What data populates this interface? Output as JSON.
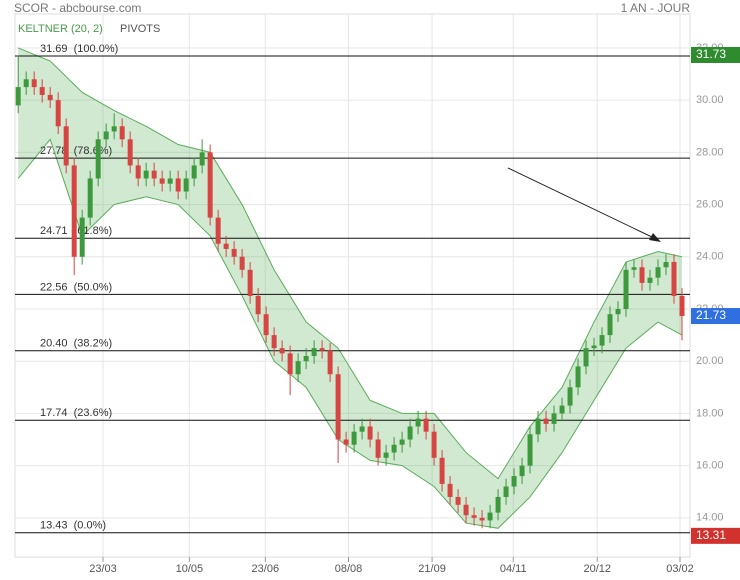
{
  "chart_data": {
    "type": "candlestick",
    "title": "SCOR - abcbourse.com",
    "period": "1 AN - JOUR",
    "legend": [
      "KELTNER (20, 2)",
      "PIVOTS"
    ],
    "ylim": [
      12.5,
      33.3
    ],
    "yticks": [
      {
        "value": 14,
        "label": "14.00"
      },
      {
        "value": 16,
        "label": "16.00"
      },
      {
        "value": 18,
        "label": "18.00"
      },
      {
        "value": 20,
        "label": "20.00"
      },
      {
        "value": 22,
        "label": "22.00"
      },
      {
        "value": 24,
        "label": "24.00"
      },
      {
        "value": 26,
        "label": "26.00"
      },
      {
        "value": 28,
        "label": "28.00"
      },
      {
        "value": 30,
        "label": "30.00"
      },
      {
        "value": 32,
        "label": "32.00"
      }
    ],
    "xlim": [
      -0.4,
      84
    ],
    "xticks": [
      {
        "value": 10.6,
        "label": "23/03"
      },
      {
        "value": 21.4,
        "label": "10/05"
      },
      {
        "value": 30.9,
        "label": "23/06"
      },
      {
        "value": 41.3,
        "label": "08/08"
      },
      {
        "value": 51.75,
        "label": "21/09"
      },
      {
        "value": 61.9,
        "label": "04/11"
      },
      {
        "value": 72.4,
        "label": "20/12"
      },
      {
        "value": 82.75,
        "label": "03/02"
      }
    ],
    "grid": true,
    "up_color": "#3c9a3c",
    "down_color": "#d64541",
    "open": [
      29.8,
      30.5,
      30.8,
      30.5,
      30.2,
      30.0,
      29.0,
      27.5,
      24.0,
      25.5,
      27.0,
      28.5,
      28.8,
      29.0,
      28.5,
      27.5,
      27.0,
      27.3,
      27.0,
      26.8,
      27.0,
      26.5,
      27.0,
      27.5,
      28.0,
      25.5,
      24.5,
      24.3,
      24.0,
      23.5,
      22.5,
      21.8,
      21.0,
      20.5,
      20.3,
      19.5,
      20.0,
      20.2,
      20.5,
      20.4,
      19.5,
      17.0,
      16.8,
      17.3,
      17.5,
      17.0,
      16.3,
      16.5,
      16.8,
      17.0,
      17.5,
      17.8,
      17.3,
      16.3,
      15.3,
      14.8,
      14.5,
      14.1,
      14.0,
      13.9,
      14.2,
      14.8,
      15.2,
      15.6,
      16.0,
      17.2,
      17.8,
      17.6,
      18.0,
      18.3,
      19.0,
      19.8,
      20.5,
      20.6,
      21.0,
      21.8,
      22.0,
      23.5,
      23.6,
      23.0,
      23.2,
      23.6,
      23.8,
      22.5
    ],
    "high": [
      31.7,
      31.1,
      31.1,
      30.8,
      30.5,
      30.3,
      29.3,
      27.8,
      25.8,
      27.3,
      28.8,
      29.1,
      29.5,
      29.3,
      28.8,
      27.8,
      27.6,
      27.6,
      27.3,
      27.3,
      27.3,
      27.3,
      27.8,
      28.5,
      28.3,
      25.8,
      24.8,
      24.6,
      24.3,
      23.8,
      22.8,
      22.1,
      21.3,
      20.8,
      20.6,
      20.3,
      20.5,
      20.8,
      20.8,
      20.7,
      19.8,
      17.3,
      17.6,
      17.8,
      17.8,
      17.3,
      16.8,
      17.1,
      17.3,
      17.8,
      18.1,
      18.1,
      17.6,
      16.6,
      15.6,
      15.1,
      14.8,
      14.4,
      14.3,
      14.5,
      15.1,
      15.5,
      15.9,
      16.3,
      17.5,
      18.1,
      18.1,
      18.3,
      18.6,
      19.3,
      20.1,
      20.8,
      20.9,
      21.3,
      22.1,
      22.3,
      23.8,
      23.9,
      23.9,
      23.5,
      23.9,
      24.1,
      24.1,
      22.8
    ],
    "low": [
      29.5,
      30.2,
      30.2,
      29.9,
      29.7,
      28.7,
      27.2,
      23.3,
      23.7,
      25.2,
      26.7,
      28.2,
      28.5,
      28.2,
      27.2,
      26.7,
      26.7,
      26.7,
      26.5,
      26.5,
      26.2,
      26.2,
      26.7,
      27.2,
      25.2,
      24.2,
      24.0,
      23.7,
      23.2,
      22.2,
      21.5,
      20.7,
      20.2,
      20.0,
      18.7,
      19.2,
      19.7,
      19.9,
      20.1,
      19.2,
      16.1,
      16.5,
      16.5,
      17.0,
      16.7,
      16.0,
      16.0,
      16.2,
      16.5,
      16.7,
      17.2,
      17.0,
      16.0,
      15.0,
      14.5,
      14.2,
      13.8,
      13.7,
      13.6,
      13.6,
      13.9,
      14.5,
      14.9,
      15.3,
      15.7,
      16.9,
      17.3,
      17.3,
      17.7,
      18.0,
      18.7,
      19.5,
      20.2,
      20.3,
      20.7,
      21.5,
      21.7,
      23.2,
      22.7,
      22.7,
      22.9,
      23.3,
      22.2,
      20.8
    ],
    "close": [
      30.5,
      30.8,
      30.5,
      30.2,
      30.0,
      29.0,
      27.5,
      24.0,
      25.5,
      27.0,
      28.5,
      28.8,
      29.0,
      28.5,
      27.5,
      27.0,
      27.3,
      27.0,
      26.8,
      27.0,
      26.5,
      27.0,
      27.5,
      28.0,
      25.5,
      24.5,
      24.3,
      24.0,
      23.5,
      22.5,
      21.8,
      21.0,
      20.5,
      20.3,
      19.5,
      20.0,
      20.2,
      20.5,
      20.4,
      19.5,
      17.0,
      16.8,
      17.3,
      17.5,
      17.0,
      16.3,
      16.5,
      16.8,
      17.0,
      17.5,
      17.8,
      17.3,
      16.3,
      15.3,
      14.8,
      14.5,
      14.1,
      14.0,
      13.9,
      14.2,
      14.8,
      15.2,
      15.6,
      16.0,
      17.2,
      17.8,
      17.6,
      18.0,
      18.3,
      19.0,
      19.8,
      20.5,
      20.6,
      21.0,
      21.8,
      22.0,
      23.5,
      23.6,
      23.0,
      23.2,
      23.6,
      23.8,
      22.5,
      21.73
    ],
    "keltner": {
      "color": "#5aac5a",
      "x": [
        0,
        4,
        8,
        12,
        16,
        20,
        24,
        28,
        32,
        36,
        40,
        44,
        48,
        52,
        56,
        60,
        64,
        68,
        72,
        76,
        80,
        83
      ],
      "upper": [
        32.0,
        31.5,
        30.3,
        29.6,
        29.0,
        28.3,
        28.0,
        26.0,
        23.5,
        21.5,
        20.5,
        18.5,
        18.0,
        18.0,
        16.5,
        15.5,
        17.5,
        19.0,
        21.5,
        23.8,
        24.2,
        24.0
      ],
      "lower": [
        27.0,
        28.5,
        24.8,
        26.0,
        26.3,
        26.0,
        24.8,
        22.5,
        20.0,
        19.0,
        17.0,
        16.2,
        16.0,
        15.2,
        13.8,
        13.6,
        14.8,
        16.5,
        18.5,
        20.5,
        21.5,
        21.0
      ]
    },
    "pivots": [
      {
        "value": 31.69,
        "label": "31.69  (100.0%)"
      },
      {
        "value": 27.78,
        "label": "27.78  (78.6%)"
      },
      {
        "value": 24.71,
        "label": "24.71  (61.8%)"
      },
      {
        "value": 22.56,
        "label": "22.56  (50.0%)"
      },
      {
        "value": 20.4,
        "label": "20.40  (38.2%)"
      },
      {
        "value": 17.74,
        "label": "17.74  (23.6%)"
      },
      {
        "value": 13.43,
        "label": "13.43  (0.0%)"
      }
    ],
    "price_tags": [
      {
        "value": 31.73,
        "color": "#2e8b2e"
      },
      {
        "value": 21.73,
        "color": "#2f6fe0"
      },
      {
        "value": 13.31,
        "color": "#d2322d"
      }
    ]
  }
}
